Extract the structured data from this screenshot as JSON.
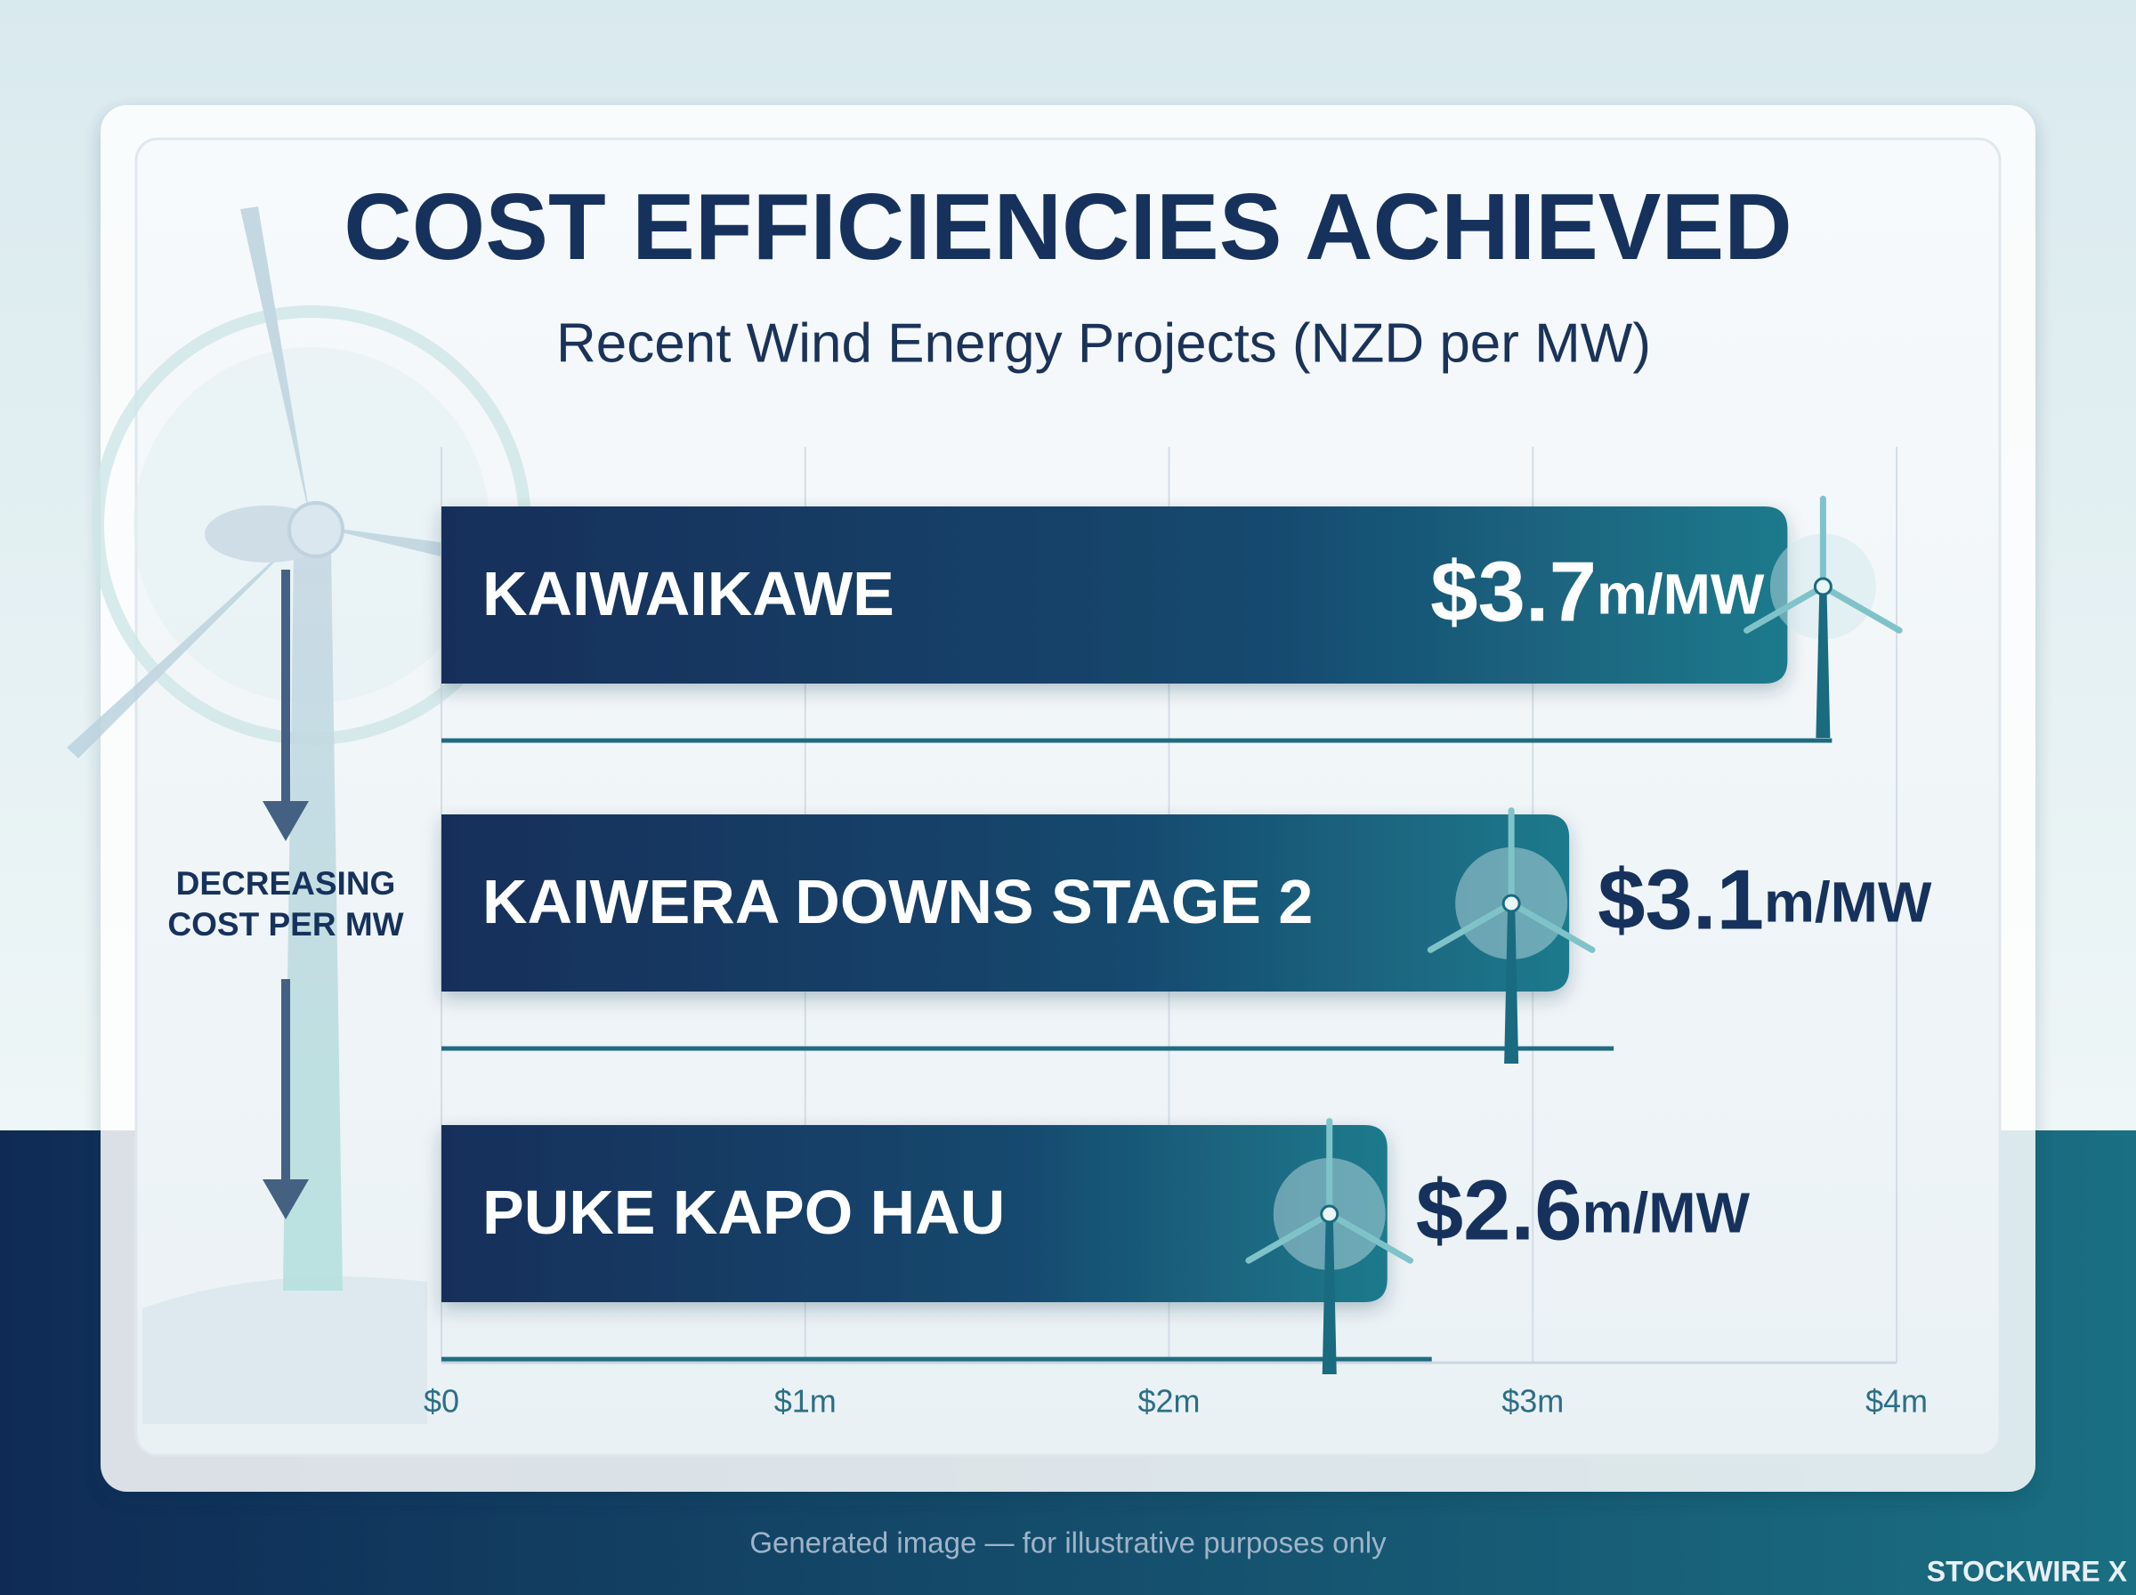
{
  "chart_data": {
    "type": "hbar",
    "title": "COST EFFICIENCIES ACHIEVED",
    "subtitle": "Recent Wind Energy Projects (NZD per MW)",
    "categories": [
      "KAIWAIKAWE",
      "KAIWERA DOWNS STAGE 2",
      "PUKE KAPO HAU"
    ],
    "values": [
      3.7,
      3.1,
      2.6
    ],
    "value_labels": [
      "$3.7m/MW",
      "$3.1m/MW",
      "$2.6m/MW"
    ],
    "xlim": [
      0,
      4
    ],
    "xticks": [
      {
        "value": 0,
        "label": "$0"
      },
      {
        "value": 1,
        "label": "$1m"
      },
      {
        "value": 2,
        "label": "$2m"
      },
      {
        "value": 3,
        "label": "$3m"
      },
      {
        "value": 4,
        "label": "$4m"
      }
    ],
    "grid": true,
    "annotation": [
      "DECREASING",
      "COST PER MW"
    ]
  },
  "footer": {
    "note": "Generated image — for illustrative purposes only",
    "brand": "STOCKWIRE X"
  }
}
